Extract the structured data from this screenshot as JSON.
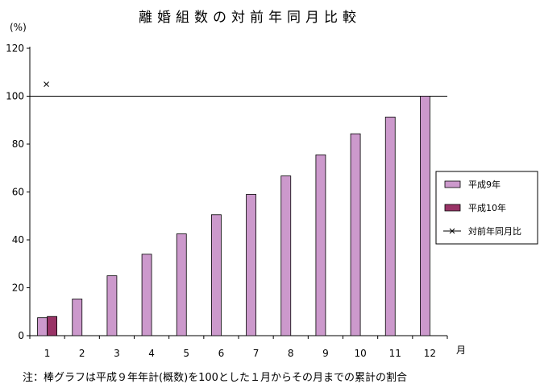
{
  "chart_data": {
    "type": "bar",
    "title": "離婚組数の対前年同月比較",
    "ylabel": "(%)",
    "xlabel": "月",
    "categories": [
      "1",
      "2",
      "3",
      "4",
      "5",
      "6",
      "7",
      "8",
      "9",
      "10",
      "11",
      "12"
    ],
    "ylim": [
      0,
      120
    ],
    "yticks": [
      "0",
      "20",
      "40",
      "60",
      "80",
      "100",
      "120"
    ],
    "reference_line": 100,
    "series": [
      {
        "name": "平成9年",
        "kind": "bar",
        "color": "#cc99cc",
        "values": [
          7.5,
          15.3,
          25.0,
          34.0,
          42.5,
          50.5,
          59.0,
          66.7,
          75.5,
          84.3,
          91.3,
          100
        ]
      },
      {
        "name": "平成10年",
        "kind": "bar",
        "color": "#993366",
        "values": [
          8.0,
          null,
          null,
          null,
          null,
          null,
          null,
          null,
          null,
          null,
          null,
          null
        ]
      },
      {
        "name": "対前年同月比",
        "kind": "line",
        "color": "#000000",
        "marker": "×",
        "values": [
          105,
          null,
          null,
          null,
          null,
          null,
          null,
          null,
          null,
          null,
          null,
          null
        ]
      }
    ],
    "legend": "right",
    "grid": false
  },
  "note": "注：棒グラフは平成９年年計(概数)を100とした１月からその月までの累計の割合"
}
